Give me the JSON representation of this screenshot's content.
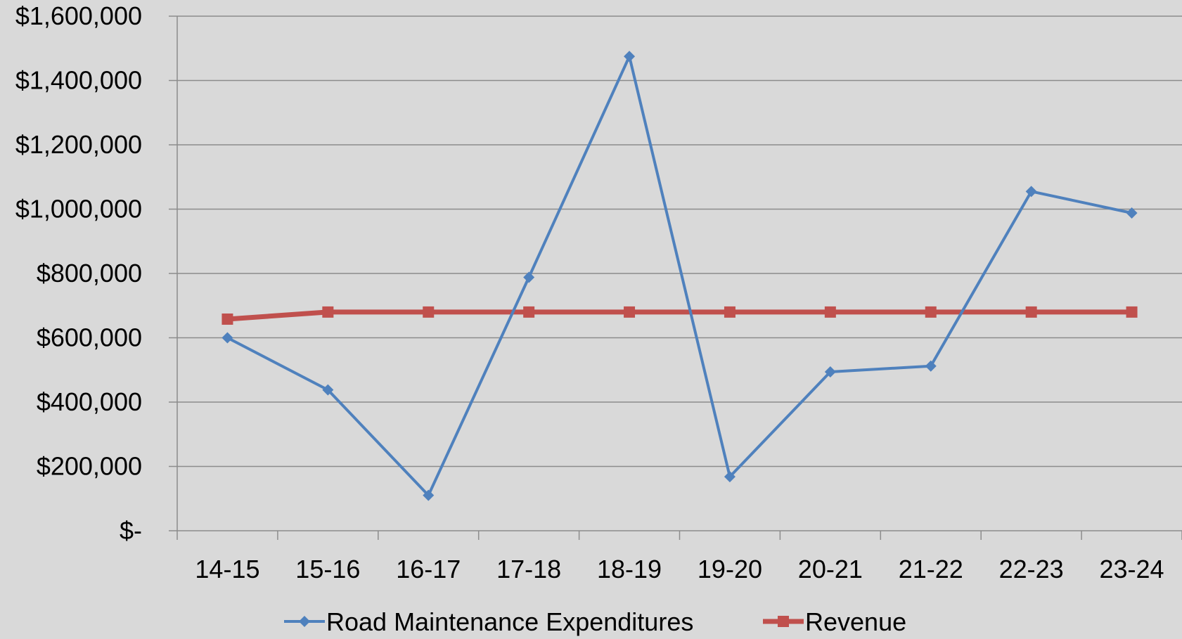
{
  "chart_data": {
    "type": "line",
    "title": "",
    "xlabel": "",
    "ylabel": "",
    "categories": [
      "14-15",
      "15-16",
      "16-17",
      "17-18",
      "18-19",
      "19-20",
      "20-21",
      "21-22",
      "22-23",
      "23-24"
    ],
    "ylim": [
      0,
      1600000
    ],
    "yticks": [
      {
        "value": 0,
        "label": "$-"
      },
      {
        "value": 200000,
        "label": "$200,000"
      },
      {
        "value": 400000,
        "label": "$400,000"
      },
      {
        "value": 600000,
        "label": "$600,000"
      },
      {
        "value": 800000,
        "label": "$800,000"
      },
      {
        "value": 1000000,
        "label": "$1,000,000"
      },
      {
        "value": 1200000,
        "label": "$1,200,000"
      },
      {
        "value": 1400000,
        "label": "$1,400,000"
      },
      {
        "value": 1600000,
        "label": "$1,600,000"
      }
    ],
    "grid": true,
    "legend_position": "bottom",
    "series": [
      {
        "name": "Road Maintenance Expenditures",
        "color": "#4f81bd",
        "marker": "diamond",
        "values": [
          600000,
          438000,
          110000,
          788000,
          1475000,
          168000,
          494000,
          512000,
          1055000,
          988000
        ]
      },
      {
        "name": "Revenue",
        "color": "#c0504d",
        "marker": "square",
        "values": [
          658000,
          680000,
          680000,
          680000,
          680000,
          680000,
          680000,
          680000,
          680000,
          680000
        ]
      }
    ]
  }
}
